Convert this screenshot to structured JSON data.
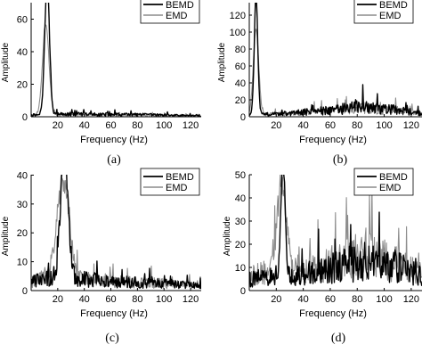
{
  "chart_data": [
    {
      "type": "line",
      "label": "(a)",
      "xlabel": "Frequency (Hz)",
      "ylabel": "Amplitude",
      "xlim": [
        0,
        128
      ],
      "ylim": [
        0,
        80
      ],
      "xticks": [
        20,
        40,
        60,
        80,
        100,
        120
      ],
      "yticks": [
        0,
        20,
        40,
        60
      ],
      "legend": "top-right",
      "series": [
        {
          "name": "BEMD",
          "color": "#000000",
          "peak": {
            "x": 12,
            "y": 80,
            "width": 1.8
          },
          "noise": [
            [
              0,
              1.2
            ],
            [
              30,
              1.6
            ],
            [
              60,
              1.4
            ],
            [
              90,
              1.2
            ],
            [
              128,
              0.6
            ]
          ]
        },
        {
          "name": "EMD",
          "color": "#8c8c8c",
          "peak": {
            "x": 11,
            "y": 56,
            "width": 2.4
          },
          "noise": [
            [
              0,
              1.0
            ],
            [
              30,
              1.3
            ],
            [
              60,
              1.1
            ],
            [
              90,
              1.0
            ],
            [
              128,
              0.5
            ]
          ]
        }
      ]
    },
    {
      "type": "line",
      "label": "(b)",
      "xlabel": "Frequency (Hz)",
      "ylabel": "Amplitude",
      "xlim": [
        0,
        128
      ],
      "ylim": [
        0,
        140
      ],
      "xticks": [
        20,
        40,
        60,
        80,
        100,
        120
      ],
      "yticks": [
        0,
        20,
        40,
        60,
        80,
        100,
        120
      ],
      "legend": "top-right",
      "series": [
        {
          "name": "BEMD",
          "color": "#000000",
          "peak": {
            "x": 5,
            "y": 140,
            "width": 1.3
          },
          "noise": [
            [
              0,
              2
            ],
            [
              30,
              4
            ],
            [
              60,
              8
            ],
            [
              85,
              12
            ],
            [
              100,
              10
            ],
            [
              128,
              4
            ]
          ]
        },
        {
          "name": "EMD",
          "color": "#8c8c8c",
          "peak": {
            "x": 5,
            "y": 100,
            "width": 2.0
          },
          "noise": [
            [
              0,
              2
            ],
            [
              30,
              4
            ],
            [
              60,
              7
            ],
            [
              85,
              10
            ],
            [
              100,
              9
            ],
            [
              128,
              4
            ]
          ]
        }
      ]
    },
    {
      "type": "line",
      "label": "(c)",
      "xlabel": "Frequency (Hz)",
      "ylabel": "Amplitude",
      "xlim": [
        0,
        128
      ],
      "ylim": [
        0,
        42
      ],
      "xticks": [
        20,
        40,
        60,
        80,
        100,
        120
      ],
      "yticks": [
        0,
        10,
        20,
        30,
        40
      ],
      "legend": "top-right",
      "series": [
        {
          "name": "BEMD",
          "color": "#000000",
          "peak": {
            "x": 25,
            "y": 42,
            "width": 2.8
          },
          "noise": [
            [
              0,
              3
            ],
            [
              20,
              5
            ],
            [
              40,
              4
            ],
            [
              70,
              3
            ],
            [
              100,
              2.5
            ],
            [
              128,
              1.5
            ]
          ]
        },
        {
          "name": "EMD",
          "color": "#8c8c8c",
          "peak": {
            "x": 24,
            "y": 32,
            "width": 4.5
          },
          "noise": [
            [
              0,
              3
            ],
            [
              20,
              6
            ],
            [
              40,
              4
            ],
            [
              70,
              3
            ],
            [
              100,
              2.5
            ],
            [
              128,
              1.5
            ]
          ]
        }
      ]
    },
    {
      "type": "line",
      "label": "(d)",
      "xlabel": "Frequency (Hz)",
      "ylabel": "Amplitude",
      "xlim": [
        0,
        128
      ],
      "ylim": [
        0,
        50
      ],
      "xticks": [
        20,
        40,
        60,
        80,
        100,
        120
      ],
      "yticks": [
        0,
        10,
        20,
        30,
        40,
        50
      ],
      "legend": "top-right",
      "series": [
        {
          "name": "BEMD",
          "color": "#000000",
          "peak": {
            "x": 25,
            "y": 50,
            "width": 1.6
          },
          "noise": [
            [
              0,
              5
            ],
            [
              20,
              6
            ],
            [
              40,
              7
            ],
            [
              70,
              11
            ],
            [
              90,
              14
            ],
            [
              110,
              10
            ],
            [
              128,
              6
            ]
          ]
        },
        {
          "name": "EMD",
          "color": "#8c8c8c",
          "peak": {
            "x": 24,
            "y": 36,
            "width": 3.5
          },
          "noise": [
            [
              0,
              6
            ],
            [
              20,
              9
            ],
            [
              40,
              8
            ],
            [
              70,
              13
            ],
            [
              90,
              15
            ],
            [
              110,
              11
            ],
            [
              128,
              7
            ]
          ]
        }
      ]
    }
  ]
}
